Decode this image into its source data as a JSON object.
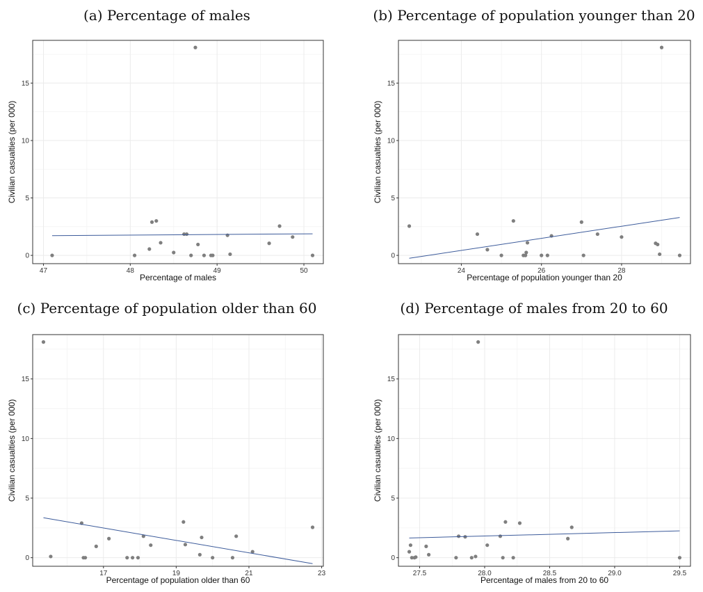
{
  "colors": {
    "point": "#7f7f7f",
    "line": "#3b5a9a",
    "grid": "#ebebeb",
    "frame": "#333333"
  },
  "chart_data": [
    {
      "type": "scatter",
      "title": "(a) Percentage of males",
      "xlabel": "Percentage of males",
      "ylabel": "Civilian casualties (per 000)",
      "xlim": [
        47,
        50.1
      ],
      "ylim": [
        0,
        18
      ],
      "xticks": [
        47,
        48,
        49,
        50
      ],
      "xtick_labels": [
        "47",
        "48",
        "49",
        "50"
      ],
      "yticks": [
        0,
        5,
        10,
        15
      ],
      "ytick_labels": [
        "0",
        "5",
        "10",
        "15"
      ],
      "grid": true,
      "trend": [
        [
          47.1,
          1.72
        ],
        [
          50.1,
          1.88
        ]
      ],
      "points": [
        [
          47.1,
          0.0
        ],
        [
          48.05,
          0.0
        ],
        [
          48.22,
          0.55
        ],
        [
          48.25,
          2.9
        ],
        [
          48.3,
          3.0
        ],
        [
          48.35,
          1.1
        ],
        [
          48.5,
          0.25
        ],
        [
          48.62,
          1.85
        ],
        [
          48.65,
          1.85
        ],
        [
          48.7,
          0.0
        ],
        [
          48.75,
          18.1
        ],
        [
          48.78,
          0.95
        ],
        [
          48.85,
          0.0
        ],
        [
          48.93,
          0.0
        ],
        [
          48.95,
          0.0
        ],
        [
          49.12,
          1.75
        ],
        [
          49.15,
          0.1
        ],
        [
          49.6,
          1.05
        ],
        [
          49.72,
          2.55
        ],
        [
          49.87,
          1.6
        ],
        [
          50.1,
          0.0
        ]
      ]
    },
    {
      "type": "scatter",
      "title": "(b) Percentage of population younger than 20",
      "xlabel": "Percentage of population younger than 20",
      "ylabel": "Civilian casualties (per 000)",
      "xlim": [
        22.7,
        29.45
      ],
      "ylim": [
        0,
        18
      ],
      "xticks": [
        24,
        26,
        28
      ],
      "xtick_labels": [
        "24",
        "26",
        "28"
      ],
      "yticks": [
        0,
        5,
        10,
        15
      ],
      "ytick_labels": [
        "0",
        "5",
        "10",
        "15"
      ],
      "grid": true,
      "trend": [
        [
          22.7,
          -0.25
        ],
        [
          29.45,
          3.3
        ]
      ],
      "points": [
        [
          22.7,
          2.55
        ],
        [
          24.4,
          1.85
        ],
        [
          24.65,
          0.5
        ],
        [
          25.0,
          0.0
        ],
        [
          25.3,
          3.0
        ],
        [
          25.55,
          0.0
        ],
        [
          25.6,
          0.0
        ],
        [
          25.62,
          0.25
        ],
        [
          25.65,
          1.1
        ],
        [
          26.0,
          0.0
        ],
        [
          26.15,
          0.0
        ],
        [
          26.25,
          1.7
        ],
        [
          27.0,
          2.9
        ],
        [
          27.05,
          0.0
        ],
        [
          27.4,
          1.85
        ],
        [
          28.0,
          1.6
        ],
        [
          28.85,
          1.05
        ],
        [
          28.9,
          0.95
        ],
        [
          28.95,
          0.1
        ],
        [
          29.0,
          18.1
        ],
        [
          29.45,
          0.0
        ]
      ]
    },
    {
      "type": "scatter",
      "title": "(c) Percentage of population older than 60",
      "xlabel": "Percentage of population older than 60",
      "ylabel": "Civilian casualties (per 000)",
      "xlim": [
        15.35,
        22.75
      ],
      "ylim": [
        0,
        18
      ],
      "xticks": [
        17,
        19,
        21,
        23
      ],
      "xtick_labels": [
        "17",
        "19",
        "21",
        "23"
      ],
      "yticks": [
        0,
        5,
        10,
        15
      ],
      "ytick_labels": [
        "0",
        "5",
        "10",
        "15"
      ],
      "grid": true,
      "trend": [
        [
          15.35,
          3.35
        ],
        [
          22.75,
          -0.5
        ]
      ],
      "points": [
        [
          15.35,
          18.1
        ],
        [
          15.55,
          0.1
        ],
        [
          16.4,
          2.9
        ],
        [
          16.45,
          0.0
        ],
        [
          16.5,
          0.0
        ],
        [
          16.8,
          0.95
        ],
        [
          17.15,
          1.6
        ],
        [
          17.65,
          0.0
        ],
        [
          17.8,
          0.0
        ],
        [
          17.95,
          0.0
        ],
        [
          18.1,
          1.8
        ],
        [
          18.3,
          1.05
        ],
        [
          19.2,
          3.0
        ],
        [
          19.25,
          1.1
        ],
        [
          19.65,
          0.25
        ],
        [
          19.7,
          1.7
        ],
        [
          20.0,
          0.0
        ],
        [
          20.55,
          0.0
        ],
        [
          20.65,
          1.8
        ],
        [
          21.1,
          0.5
        ],
        [
          22.75,
          2.55
        ]
      ]
    },
    {
      "type": "scatter",
      "title": "(d) Percentage of males from 20 to 60",
      "xlabel": "Percentage of males from 20 to 60",
      "ylabel": "Civilian casualties (per 000)",
      "xlim": [
        27.42,
        29.5
      ],
      "ylim": [
        0,
        18
      ],
      "xticks": [
        27.5,
        28.0,
        28.5,
        29.0,
        29.5
      ],
      "xtick_labels": [
        "27.5",
        "28.0",
        "28.5",
        "29.0",
        "29.5"
      ],
      "yticks": [
        0,
        5,
        10,
        15
      ],
      "ytick_labels": [
        "0",
        "5",
        "10",
        "15"
      ],
      "grid": true,
      "trend": [
        [
          27.42,
          1.65
        ],
        [
          29.5,
          2.25
        ]
      ],
      "points": [
        [
          27.42,
          0.5
        ],
        [
          27.43,
          1.05
        ],
        [
          27.44,
          0.0
        ],
        [
          27.46,
          0.0
        ],
        [
          27.47,
          0.05
        ],
        [
          27.55,
          0.95
        ],
        [
          27.57,
          0.25
        ],
        [
          27.78,
          0.0
        ],
        [
          27.8,
          1.8
        ],
        [
          27.85,
          1.75
        ],
        [
          27.9,
          0.0
        ],
        [
          27.93,
          0.1
        ],
        [
          27.95,
          18.1
        ],
        [
          28.02,
          1.05
        ],
        [
          28.12,
          1.8
        ],
        [
          28.14,
          0.0
        ],
        [
          28.16,
          3.0
        ],
        [
          28.22,
          0.0
        ],
        [
          28.27,
          2.9
        ],
        [
          28.64,
          1.6
        ],
        [
          28.67,
          2.55
        ],
        [
          29.5,
          0.0
        ]
      ]
    }
  ]
}
